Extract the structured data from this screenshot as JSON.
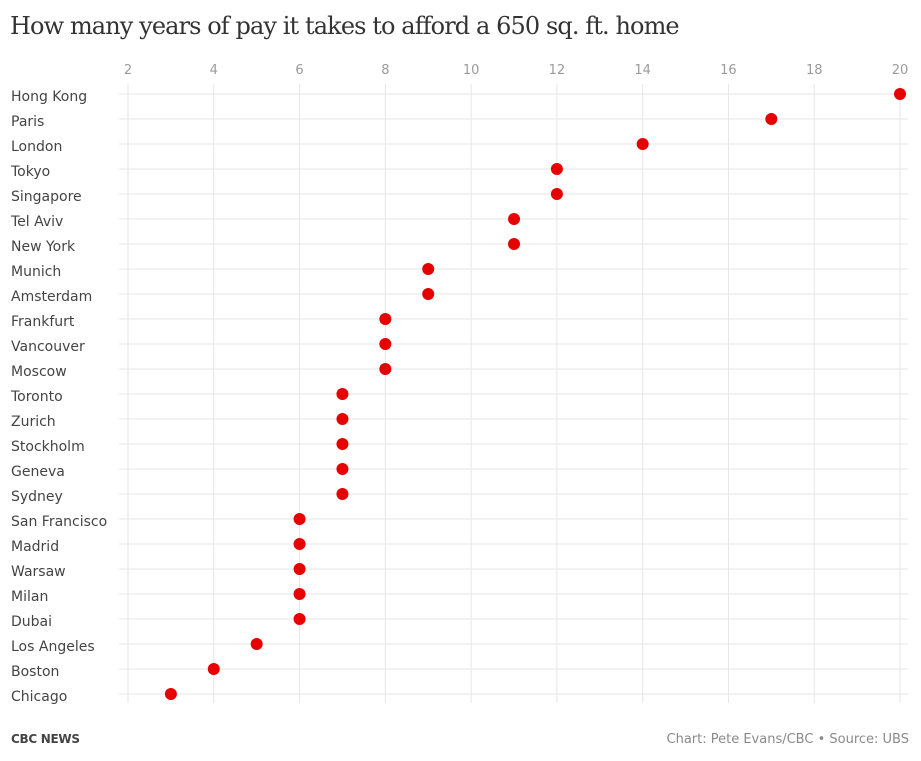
{
  "header": {
    "title": "How many years of pay it takes to afford a 650 sq. ft. home"
  },
  "footer": {
    "brand": "CBC NEWS",
    "credit": "Chart: Pete Evans/CBC • Source: UBS"
  },
  "colors": {
    "dot": "#e60000",
    "grid": "#e6e6e6",
    "tick_text": "#9b9b9b",
    "label_text": "#444444"
  },
  "chart_data": {
    "type": "scatter",
    "subtype": "dot-plot",
    "title": "How many years of pay it takes to afford a 650 sq. ft. home",
    "xlabel": "",
    "ylabel": "",
    "xlim": [
      2,
      20
    ],
    "x_ticks": [
      2,
      4,
      6,
      8,
      10,
      12,
      14,
      16,
      18,
      20
    ],
    "x_axis_position": "top",
    "grid": true,
    "legend": "none",
    "categories": [
      "Hong Kong",
      "Paris",
      "London",
      "Tokyo",
      "Singapore",
      "Tel Aviv",
      "New York",
      "Munich",
      "Amsterdam",
      "Frankfurt",
      "Vancouver",
      "Moscow",
      "Toronto",
      "Zurich",
      "Stockholm",
      "Geneva",
      "Sydney",
      "San Francisco",
      "Madrid",
      "Warsaw",
      "Milan",
      "Dubai",
      "Los Angeles",
      "Boston",
      "Chicago"
    ],
    "series": [
      {
        "name": "Years of pay",
        "values": [
          20,
          17,
          14,
          12,
          12,
          11,
          11,
          9,
          9,
          8,
          8,
          8,
          7,
          7,
          7,
          7,
          7,
          6,
          6,
          6,
          6,
          6,
          5,
          4,
          3
        ]
      }
    ]
  }
}
